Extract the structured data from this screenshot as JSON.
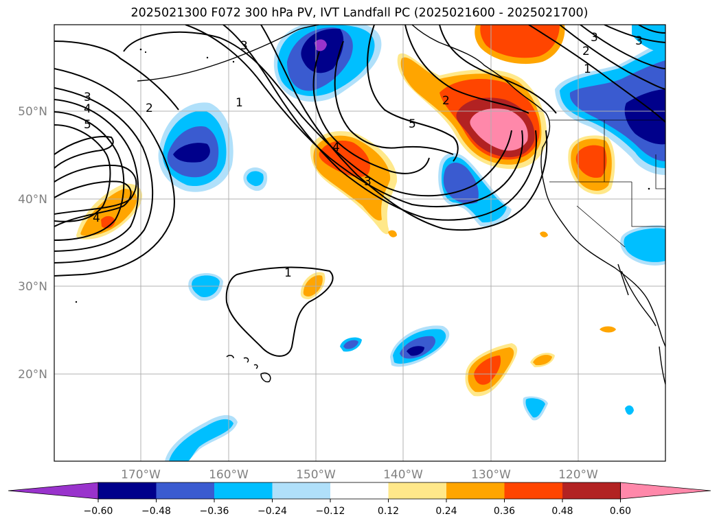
{
  "title": "2025021300 F072 300 hPa PV, IVT Landfall PC (2025021600 - 2025021700)",
  "lat_labels": [
    "50°N",
    "40°N",
    "30°N",
    "20°N"
  ],
  "lon_labels": [
    "170°W",
    "160°W",
    "150°W",
    "140°W",
    "130°W",
    "120°W"
  ],
  "colorbar": {
    "tick_labels": [
      "−0.60",
      "−0.48",
      "−0.36",
      "−0.24",
      "−0.12",
      "0.12",
      "0.24",
      "0.36",
      "0.48",
      "0.60"
    ],
    "colors": [
      "#9933cc",
      "#00008b",
      "#3a5bd0",
      "#00bfff",
      "#b0e0fa",
      "#ffffff",
      "#ffe88a",
      "#ffa500",
      "#ff4500",
      "#b22222",
      "#ff88aa"
    ]
  },
  "contour_labels": [
    "3",
    "4",
    "5",
    "2",
    "1",
    "3",
    "4",
    "3",
    "2",
    "5",
    "1",
    "3",
    "2",
    "1",
    "3",
    "4"
  ],
  "colors": {
    "land_line": "#000000",
    "grid": "#b0b0b0",
    "tick_text": "#808080"
  }
}
